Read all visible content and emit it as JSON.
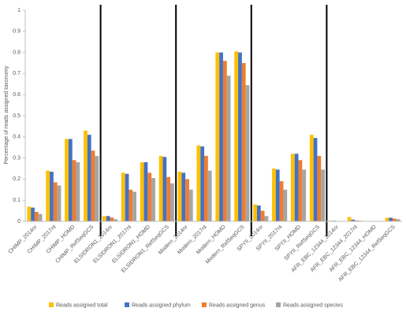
{
  "chart_data": {
    "type": "bar",
    "y_label": "Percentage of reads assigned taxonomy",
    "categories": [
      "CHIMP_2014nr",
      "CHIMP_2017nt",
      "CHIMP_HOMD",
      "CHIMP_RefSeqGCS",
      "ELSIDRON1_2014nr",
      "ELSIDRON1_2017nt",
      "ELSIDRON1_HOMD",
      "ELSIDRON1_RefSeqGCS",
      "Modern_2014nr",
      "Modern_2017nt",
      "Modern_HOMD",
      "Modern_RefSeqGCS",
      "SPYII_2014nr",
      "SPYII_2017nt",
      "SPYII_HOMD",
      "SPYII_RefSeqGCS",
      "AFR_EBC_12344_2014nr",
      "AFR_EBC_12344_2017nt",
      "AFR_EBC_12344_HOMD",
      "AFR_EBC_12344_RefSeqGCS"
    ],
    "series": [
      {
        "name": "Reads assigned total",
        "color": "#ffc000",
        "values": [
          0.07,
          0.24,
          0.39,
          0.43,
          0.025,
          0.23,
          0.28,
          0.31,
          0.235,
          0.36,
          0.8,
          0.805,
          0.08,
          0.25,
          0.32,
          0.41,
          0.003,
          0.02,
          0.002,
          0.017
        ]
      },
      {
        "name": "Reads assigned phylum",
        "color": "#4472c4",
        "values": [
          0.065,
          0.235,
          0.39,
          0.41,
          0.025,
          0.225,
          0.28,
          0.305,
          0.23,
          0.355,
          0.8,
          0.8,
          0.075,
          0.245,
          0.32,
          0.395,
          0.003,
          0.008,
          0.002,
          0.017
        ]
      },
      {
        "name": "Reads assigned genus",
        "color": "#ed7d31",
        "values": [
          0.045,
          0.185,
          0.29,
          0.335,
          0.018,
          0.15,
          0.23,
          0.21,
          0.2,
          0.31,
          0.76,
          0.75,
          0.05,
          0.19,
          0.29,
          0.31,
          0.002,
          0.004,
          0.002,
          0.013
        ]
      },
      {
        "name": "Reads assigned species",
        "color": "#a5a5a5",
        "values": [
          0.035,
          0.17,
          0.28,
          0.31,
          0.01,
          0.14,
          0.205,
          0.18,
          0.15,
          0.24,
          0.69,
          0.645,
          0.025,
          0.15,
          0.245,
          0.245,
          0.002,
          0.003,
          0.002,
          0.01
        ]
      }
    ],
    "ylim": [
      0,
      1
    ],
    "yticks": [
      0,
      0.1,
      0.2,
      0.3,
      0.4,
      0.5,
      0.6,
      0.7,
      0.8,
      0.9,
      1
    ],
    "legend": "bottom"
  }
}
